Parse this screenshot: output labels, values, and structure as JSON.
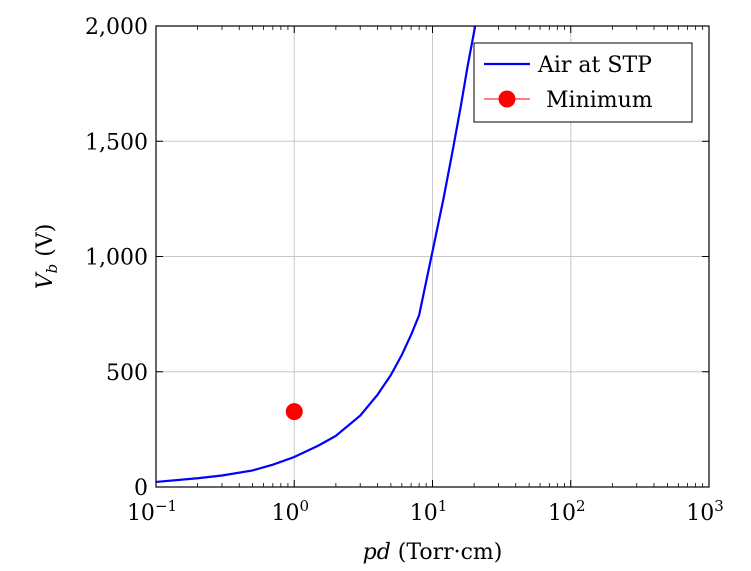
{
  "chart_data": {
    "type": "line",
    "x_scale": "log",
    "xlim": [
      0.1,
      1000
    ],
    "ylim": [
      0,
      2000
    ],
    "grid": true,
    "legend_position": "top-right",
    "x_ticks": [
      {
        "value": 0.1,
        "base": "10",
        "exp": "−1"
      },
      {
        "value": 1,
        "base": "10",
        "exp": "0"
      },
      {
        "value": 10,
        "base": "10",
        "exp": "1"
      },
      {
        "value": 100,
        "base": "10",
        "exp": "2"
      },
      {
        "value": 1000,
        "base": "10",
        "exp": "3"
      }
    ],
    "y_ticks": [
      {
        "value": 0,
        "label": "0"
      },
      {
        "value": 500,
        "label": "500"
      },
      {
        "value": 1000,
        "label": "1,000"
      },
      {
        "value": 1500,
        "label": "1,500"
      },
      {
        "value": 2000,
        "label": "2,000"
      }
    ],
    "xlabel": {
      "italic": "pd",
      "rest": " (Torr·cm)"
    },
    "ylabel": {
      "main": "V",
      "sub": "b",
      "rest": " (V)"
    },
    "series": [
      {
        "name": "Air at STP",
        "color": "#0000ff",
        "x": [
          0.1,
          0.2,
          0.3,
          0.5,
          0.7,
          1,
          1.5,
          2,
          3,
          4,
          5,
          6,
          7,
          8,
          10,
          12,
          14,
          16,
          18,
          20,
          21
        ],
        "y": [
          22,
          38,
          50,
          72,
          97,
          130,
          180,
          222,
          310,
          400,
          486,
          573,
          660,
          745,
          1022,
          1250,
          1460,
          1650,
          1830,
          1975,
          2050
        ]
      }
    ],
    "points": [
      {
        "name": "Minimum",
        "color": "#ff0000",
        "x": 1,
        "y": 327
      }
    ]
  }
}
